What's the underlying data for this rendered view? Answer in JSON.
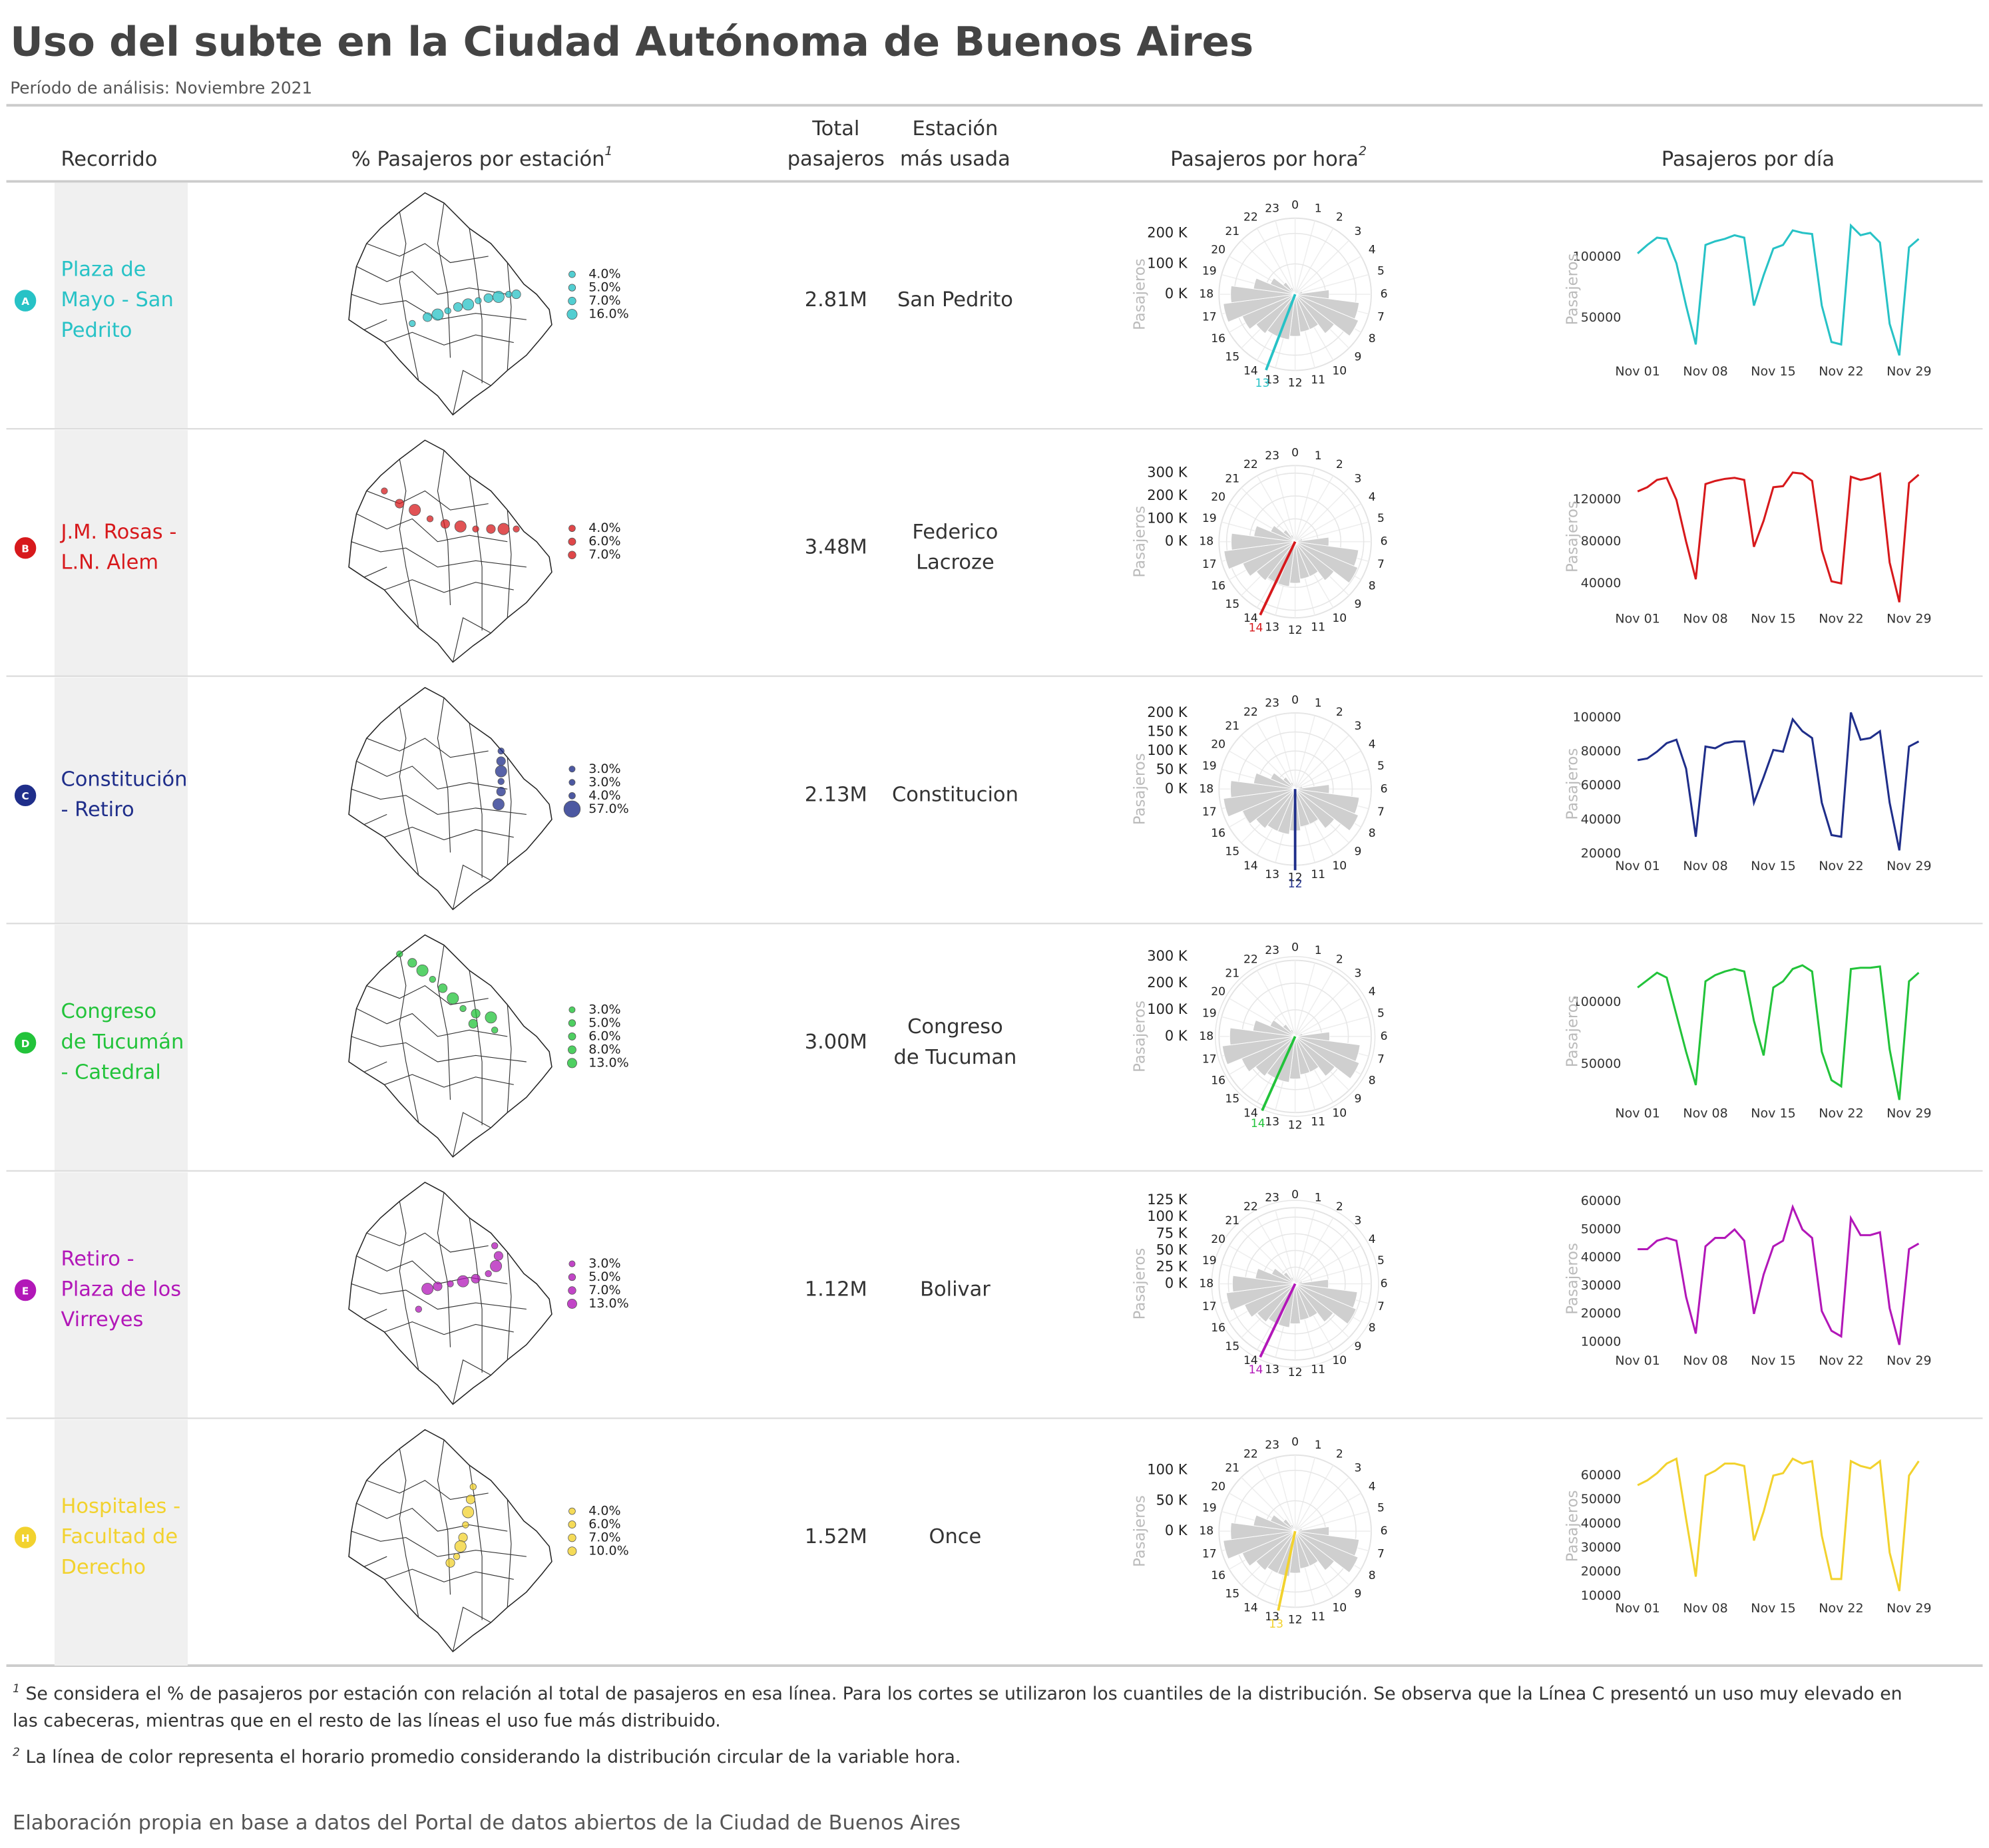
{
  "title": "Uso del subte en la Ciudad Autónoma de Buenos Aires",
  "subtitle": "Período de análisis: Noviembre 2021",
  "columns": [
    {
      "label": "Recorrido"
    },
    {
      "label": "% Pasajeros por estación",
      "note": "1"
    },
    {
      "lines": [
        "Total",
        "pasajeros"
      ]
    },
    {
      "lines": [
        "Estación",
        "más usada"
      ]
    },
    {
      "label": "Pasajeros por hora",
      "note": "2"
    },
    {
      "label": "Pasajeros por día"
    }
  ],
  "hours": [
    0,
    1,
    2,
    3,
    4,
    5,
    6,
    7,
    8,
    9,
    10,
    11,
    12,
    13,
    14,
    15,
    16,
    17,
    18,
    19,
    20,
    21,
    22,
    23
  ],
  "radial_axis_title": "Pasajeros",
  "daily_axis_title": "Pasajeros",
  "days": [
    1,
    2,
    3,
    4,
    5,
    6,
    7,
    8,
    9,
    10,
    11,
    12,
    13,
    14,
    15,
    16,
    17,
    18,
    19,
    20,
    21,
    22,
    23,
    24,
    25,
    26,
    27,
    28,
    29,
    30
  ],
  "xlim": [
    1,
    30
  ],
  "xticks": [
    {
      "value": 1,
      "label": "Nov 01"
    },
    {
      "value": 8,
      "label": "Nov 08"
    },
    {
      "value": 15,
      "label": "Nov 15"
    },
    {
      "value": 22,
      "label": "Nov 22"
    },
    {
      "value": 29,
      "label": "Nov 29"
    }
  ],
  "rows": [
    {
      "letter": "A",
      "color": "#27c2c6",
      "name_lines": [
        "Plaza de",
        "Mayo - San",
        "Pedrito"
      ],
      "map_legend": [
        {
          "value": 4,
          "label": "4.0%"
        },
        {
          "value": 5,
          "label": "5.0%"
        },
        {
          "value": 7,
          "label": "7.0%"
        },
        {
          "value": 16,
          "label": "16.0%"
        }
      ],
      "total": "2.81M",
      "station_lines": [
        "San Pedrito"
      ],
      "hourly": [
        0,
        0,
        0,
        0,
        0,
        25000,
        112000,
        212000,
        225000,
        162000,
        125000,
        125000,
        138000,
        150000,
        150000,
        162000,
        188000,
        238000,
        212000,
        138000,
        88000,
        50000,
        25000,
        8000
      ],
      "hourly_rlim": [
        0,
        250000
      ],
      "hourly_ticks": [
        {
          "value": 0,
          "label": "0 K"
        },
        {
          "value": 100000,
          "label": "100 K"
        },
        {
          "value": 200000,
          "label": "200 K"
        }
      ],
      "mean_hour": {
        "value": 13.4,
        "label": "13"
      },
      "daily": [
        103000,
        110000,
        116000,
        115000,
        95000,
        60000,
        28000,
        110000,
        113000,
        115000,
        118000,
        116000,
        60000,
        85000,
        107000,
        110000,
        122000,
        120000,
        119000,
        60000,
        30000,
        28000,
        126000,
        118000,
        120000,
        112000,
        45000,
        19000,
        108000,
        115000
      ],
      "ylim": [
        16000,
        131000
      ],
      "yticks": [
        50000,
        100000
      ]
    },
    {
      "letter": "B",
      "color": "#d7191c",
      "name_lines": [
        "J.M. Rosas -",
        "L.N. Alem"
      ],
      "map_legend": [
        {
          "value": 4,
          "label": "4.0%"
        },
        {
          "value": 6,
          "label": "6.0%"
        },
        {
          "value": 7,
          "label": "7.0%"
        }
      ],
      "total": "3.48M",
      "station_lines": [
        "Federico",
        "Lacroze"
      ],
      "hourly": [
        0,
        0,
        0,
        0,
        0,
        33000,
        148000,
        280000,
        297000,
        214000,
        165000,
        165000,
        182000,
        198000,
        198000,
        214000,
        248000,
        314000,
        280000,
        182000,
        116000,
        66000,
        33000,
        10000
      ],
      "hourly_rlim": [
        0,
        333000
      ],
      "hourly_ticks": [
        {
          "value": 0,
          "label": "0 K"
        },
        {
          "value": 100000,
          "label": "100 K"
        },
        {
          "value": 200000,
          "label": "200 K"
        },
        {
          "value": 300000,
          "label": "300 K"
        }
      ],
      "mean_hour": {
        "value": 13.7,
        "label": "14"
      },
      "daily": [
        128000,
        132000,
        139000,
        141000,
        120000,
        80000,
        44000,
        135000,
        138000,
        140000,
        141000,
        139000,
        75000,
        100000,
        132000,
        133000,
        146000,
        145000,
        138000,
        72000,
        42000,
        40000,
        142000,
        139000,
        141000,
        145000,
        60000,
        22000,
        136000,
        144000
      ],
      "ylim": [
        18000,
        151500
      ],
      "yticks": [
        40000,
        80000,
        120000
      ]
    },
    {
      "letter": "C",
      "color": "#1f2e8a",
      "name_lines": [
        "Constitución",
        "- Retiro"
      ],
      "map_legend": [
        {
          "value": 3,
          "label": "3.0%"
        },
        {
          "value": 3,
          "label": "3.0%"
        },
        {
          "value": 4,
          "label": "4.0%"
        },
        {
          "value": 57,
          "label": "57.0%"
        }
      ],
      "total": "2.13M",
      "station_lines": [
        "Constitucion"
      ],
      "hourly": [
        0,
        0,
        0,
        0,
        0,
        20000,
        90000,
        170000,
        180000,
        130000,
        100000,
        100000,
        110000,
        120000,
        120000,
        130000,
        150000,
        190000,
        170000,
        110000,
        70000,
        40000,
        20000,
        6000
      ],
      "hourly_rlim": [
        0,
        200000
      ],
      "hourly_ticks": [
        {
          "value": 0,
          "label": "0 K"
        },
        {
          "value": 50000,
          "label": "50 K"
        },
        {
          "value": 100000,
          "label": "100 K"
        },
        {
          "value": 150000,
          "label": "150 K"
        },
        {
          "value": 200000,
          "label": "200 K"
        }
      ],
      "mean_hour": {
        "value": 12.0,
        "label": "12"
      },
      "daily": [
        75000,
        76000,
        80000,
        85000,
        87000,
        70000,
        30000,
        83000,
        82000,
        85000,
        86000,
        86000,
        50000,
        65000,
        81000,
        80000,
        99000,
        92000,
        88000,
        50000,
        31000,
        30000,
        103000,
        87000,
        88000,
        92000,
        50000,
        22000,
        83000,
        86000
      ],
      "ylim": [
        20000,
        102000
      ],
      "yticks": [
        20000,
        40000,
        60000,
        80000,
        100000
      ]
    },
    {
      "letter": "D",
      "color": "#22c33a",
      "name_lines": [
        "Congreso",
        "de Tucumán",
        "- Catedral"
      ],
      "map_legend": [
        {
          "value": 3,
          "label": "3.0%"
        },
        {
          "value": 5,
          "label": "5.0%"
        },
        {
          "value": 6,
          "label": "6.0%"
        },
        {
          "value": 8,
          "label": "8.0%"
        },
        {
          "value": 13,
          "label": "13.0%"
        }
      ],
      "total": "3.00M",
      "station_lines": [
        "Congreso",
        "de Tucuman"
      ],
      "hourly": [
        0,
        0,
        0,
        0,
        0,
        29000,
        130000,
        246000,
        261000,
        188000,
        145000,
        145000,
        160000,
        174000,
        174000,
        188000,
        218000,
        276000,
        246000,
        160000,
        102000,
        58000,
        29000,
        9000
      ],
      "hourly_rlim": [
        0,
        286000
      ],
      "hourly_ticks": [
        {
          "value": 0,
          "label": "0 K"
        },
        {
          "value": 100000,
          "label": "100 K"
        },
        {
          "value": 200000,
          "label": "200 K"
        },
        {
          "value": 300000,
          "label": "300 K"
        }
      ],
      "mean_hour": {
        "value": 13.6,
        "label": "14"
      },
      "daily": [
        112000,
        118000,
        124000,
        120000,
        90000,
        60000,
        33000,
        117000,
        122000,
        125000,
        127000,
        125000,
        85000,
        57000,
        112000,
        117000,
        127000,
        130000,
        125000,
        60000,
        37000,
        32000,
        127000,
        128000,
        128000,
        129000,
        62000,
        21000,
        117000,
        124000
      ],
      "ylim": [
        20000,
        133000
      ],
      "yticks": [
        50000,
        100000
      ]
    },
    {
      "letter": "E",
      "color": "#b217b8",
      "name_lines": [
        "Retiro -",
        "Plaza de los",
        "Virreyes"
      ],
      "map_legend": [
        {
          "value": 3,
          "label": "3.0%"
        },
        {
          "value": 5,
          "label": "5.0%"
        },
        {
          "value": 7,
          "label": "7.0%"
        },
        {
          "value": 13,
          "label": "13.0%"
        }
      ],
      "total": "1.12M",
      "station_lines": [
        "Bolivar"
      ],
      "hourly": [
        0,
        0,
        0,
        0,
        0,
        11000,
        50000,
        94000,
        99000,
        72000,
        55000,
        55000,
        60000,
        66000,
        66000,
        72000,
        82000,
        104000,
        94000,
        60000,
        38000,
        22000,
        11000,
        3000
      ],
      "hourly_rlim": [
        0,
        114000
      ],
      "hourly_ticks": [
        {
          "value": 0,
          "label": "0 K"
        },
        {
          "value": 25000,
          "label": "25 K"
        },
        {
          "value": 50000,
          "label": "50 K"
        },
        {
          "value": 75000,
          "label": "75 K"
        },
        {
          "value": 100000,
          "label": "100 K"
        },
        {
          "value": 125000,
          "label": "125 K"
        }
      ],
      "mean_hour": {
        "value": 13.7,
        "label": "14"
      },
      "daily": [
        43000,
        43000,
        46000,
        47000,
        46000,
        26000,
        13000,
        44000,
        47000,
        47000,
        50000,
        46000,
        20000,
        34000,
        44000,
        46000,
        58000,
        50000,
        47000,
        21000,
        14000,
        12000,
        54000,
        48000,
        48000,
        49000,
        22000,
        9000,
        43000,
        45000
      ],
      "ylim": [
        7700,
        57300
      ],
      "yticks": [
        10000,
        20000,
        30000,
        40000,
        50000,
        60000
      ]
    },
    {
      "letter": "H",
      "color": "#f2d22e",
      "name_lines": [
        "Hospitales -",
        "Facultad de",
        "Derecho"
      ],
      "map_legend": [
        {
          "value": 4,
          "label": "4.0%"
        },
        {
          "value": 6,
          "label": "6.0%"
        },
        {
          "value": 7,
          "label": "7.0%"
        },
        {
          "value": 10,
          "label": "10.0%"
        }
      ],
      "total": "1.52M",
      "station_lines": [
        "Once"
      ],
      "hourly": [
        0,
        0,
        0,
        0,
        0,
        12000,
        56000,
        106000,
        112000,
        81000,
        62000,
        62000,
        69000,
        75000,
        75000,
        81000,
        94000,
        119000,
        106000,
        69000,
        44000,
        25000,
        12000,
        4000
      ],
      "hourly_rlim": [
        0,
        125000
      ],
      "hourly_ticks": [
        {
          "value": 0,
          "label": "0 K"
        },
        {
          "value": 50000,
          "label": "50 K"
        },
        {
          "value": 100000,
          "label": "100 K"
        }
      ],
      "mean_hour": {
        "value": 12.8,
        "label": "13"
      },
      "daily": [
        56000,
        58000,
        61000,
        65000,
        67000,
        42000,
        18000,
        60000,
        62000,
        65000,
        65000,
        64000,
        33000,
        45000,
        60000,
        61000,
        67000,
        65000,
        66000,
        35000,
        17000,
        17000,
        66000,
        64000,
        63000,
        66000,
        28000,
        12000,
        60000,
        66000
      ],
      "ylim": [
        10000,
        68000
      ],
      "yticks": [
        10000,
        20000,
        30000,
        40000,
        50000,
        60000
      ]
    }
  ],
  "footnotes": [
    {
      "mark": "1",
      "text": "Se considera el % de pasajeros por estación con relación al total de pasajeros en esa línea. Para los cortes se utilizaron los cuantiles de la distribución. Se observa que la Línea C presentó un uso muy elevado en las cabeceras, mientras que en el resto de las líneas el uso fue más distribuido."
    },
    {
      "mark": "2",
      "text": "La línea de color representa el horario promedio considerando la distribución circular de la variable hora."
    }
  ],
  "source": "Elaboración propia en base a datos del Portal de datos abiertos de la Ciudad de Buenos Aires"
}
